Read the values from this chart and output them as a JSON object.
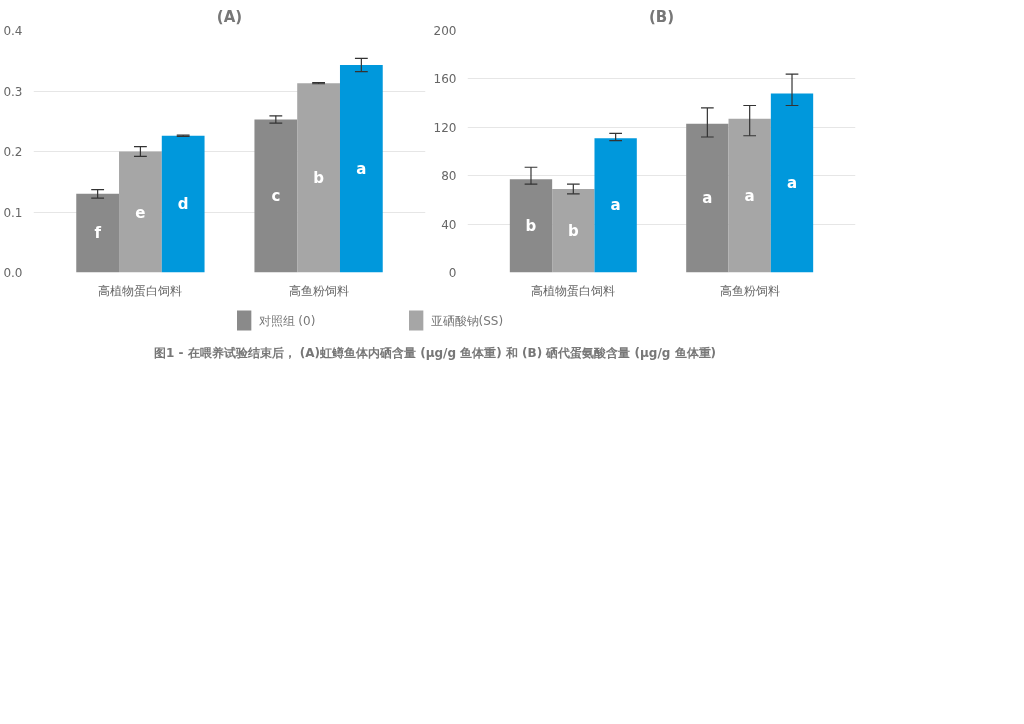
{
  "chart_data": [
    {
      "type": "bar",
      "title": "(A)",
      "categories": [
        "高植物蛋白饲料",
        "高鱼粉饲料"
      ],
      "ylim": [
        0,
        0.4
      ],
      "yticks": [
        {
          "value": 0,
          "label": "0.0"
        },
        0.1,
        0.2,
        0.3,
        0.4
      ],
      "grid": "y",
      "legend": "bottom",
      "series": [
        {
          "name": "对照组 (0)",
          "color": "#8a8a8a",
          "values": [
            0.13,
            0.253
          ],
          "errors": [
            0.007,
            0.006
          ],
          "value_labels": [
            "f",
            "c"
          ]
        },
        {
          "name": "亚硒酸钠(SS)",
          "color": "#a6a6a6",
          "values": [
            0.2,
            0.313
          ],
          "errors": [
            0.008,
            0.001
          ],
          "value_labels": [
            "e",
            "b"
          ]
        },
        {
          "color": "#0098dc",
          "values": [
            0.226,
            0.343
          ],
          "errors": [
            0.001,
            0.011
          ],
          "value_labels": [
            "d",
            "a"
          ]
        }
      ],
      "annotations": [
        "图1 - 在喂养试验结束后， (A)虹鳟鱼体内硒含量 (μg/g  鱼体重) 和 (B) 硒代蛋氨酸含量 (μg/g  鱼体重)"
      ]
    },
    {
      "type": "bar",
      "title": "(B)",
      "categories": [
        "高植物蛋白饲料",
        "高鱼粉饲料"
      ],
      "ylim": [
        0,
        200
      ],
      "yticks": [
        0,
        40,
        80,
        120,
        160,
        200
      ],
      "grid": "y",
      "series": [
        {
          "color": "#8a8a8a",
          "values": [
            77,
            123
          ],
          "errors": [
            [
              73,
              87
            ],
            [
              112,
              136
            ]
          ],
          "value_labels": [
            "b",
            "a"
          ]
        },
        {
          "color": "#a6a6a6",
          "values": [
            69,
            127
          ],
          "errors": [
            [
              65,
              73
            ],
            [
              113,
              138
            ]
          ],
          "value_labels": [
            "b",
            "a"
          ]
        },
        {
          "color": "#0098dc",
          "values": [
            111,
            148
          ],
          "errors": [
            [
              109,
              115
            ],
            [
              138,
              164
            ]
          ],
          "value_labels": [
            "a",
            "a"
          ]
        }
      ]
    }
  ]
}
